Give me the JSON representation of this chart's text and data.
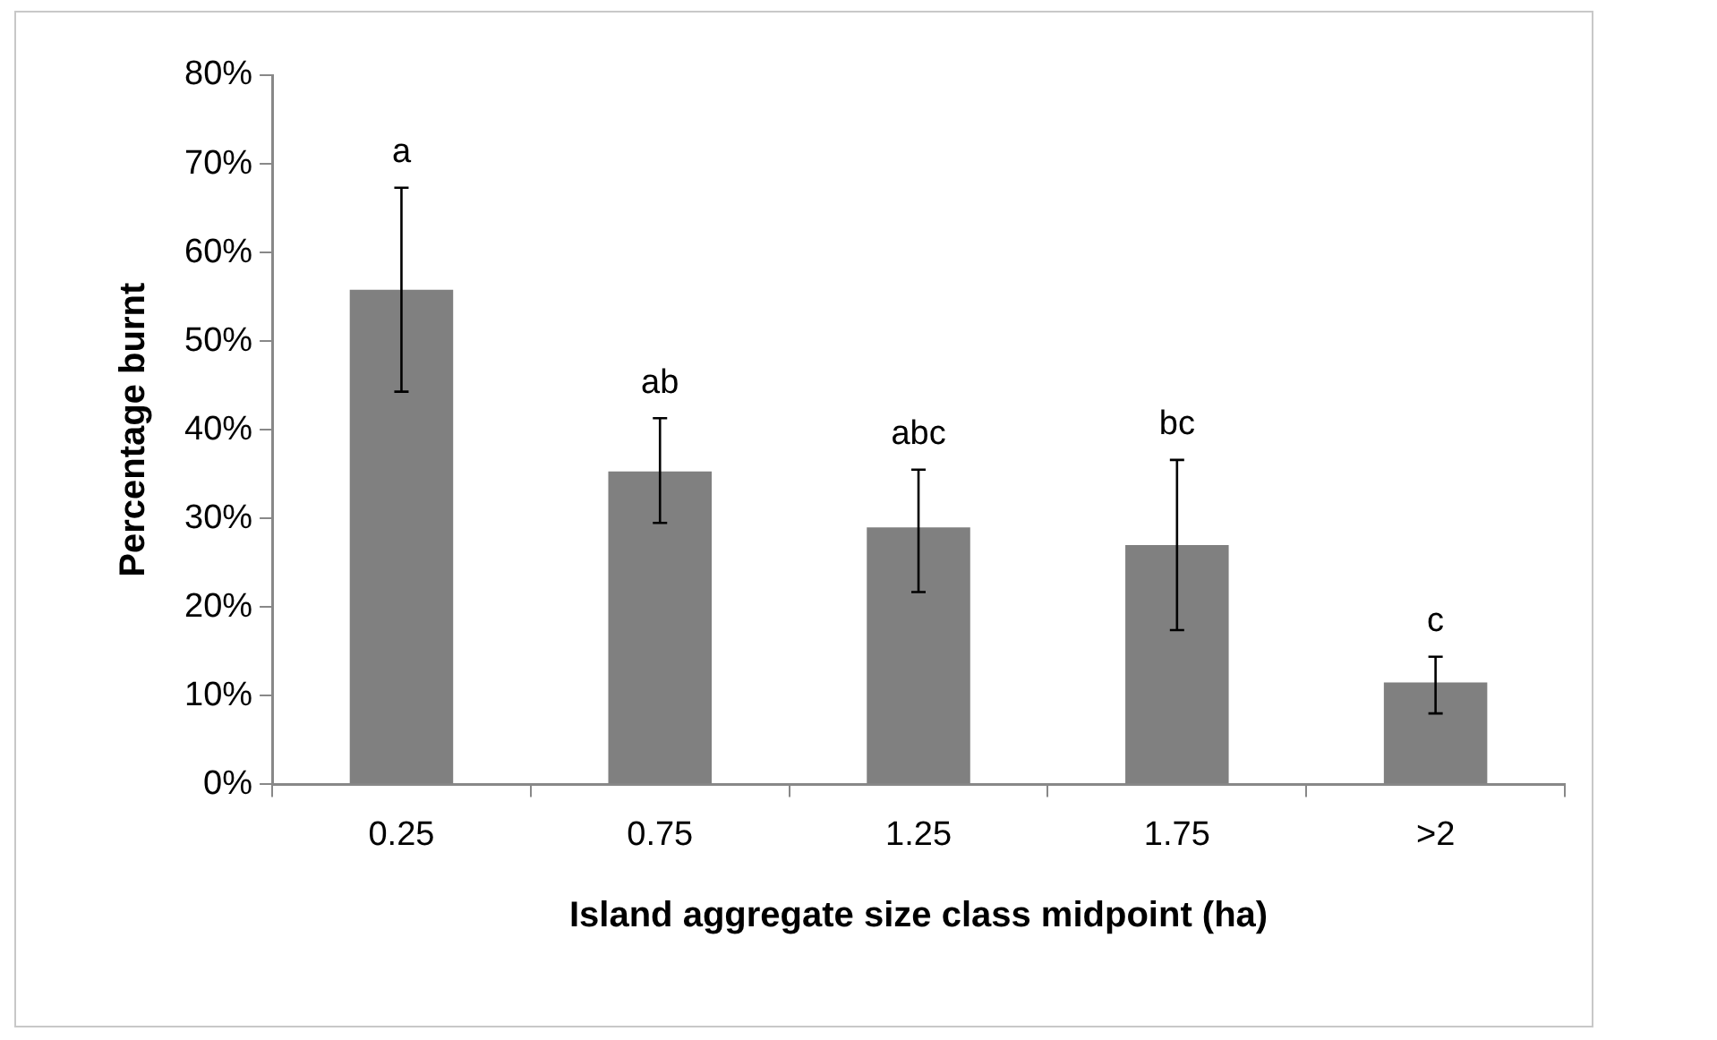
{
  "chart_data": {
    "type": "bar",
    "xlabel": "Island aggregate size class midpoint (ha)",
    "ylabel": "Percentage burnt",
    "categories": [
      "0.25",
      "0.75",
      "1.25",
      "1.75",
      ">2"
    ],
    "series": [
      {
        "color": "#808080",
        "values": [
          55.8,
          35.3,
          29.0,
          27.0,
          11.5
        ],
        "errors": [
          [
            44.3,
            67.3
          ],
          [
            29.5,
            41.3
          ],
          [
            21.7,
            35.5
          ],
          [
            17.4,
            36.6
          ],
          [
            8.0,
            14.4
          ]
        ]
      }
    ],
    "ylim": [
      0,
      80
    ],
    "yticks": [
      {
        "value": 0,
        "label": "0%"
      },
      {
        "value": 10,
        "label": "10%"
      },
      {
        "value": 20,
        "label": "20%"
      },
      {
        "value": 30,
        "label": "30%"
      },
      {
        "value": 40,
        "label": "40%"
      },
      {
        "value": 50,
        "label": "50%"
      },
      {
        "value": 60,
        "label": "60%"
      },
      {
        "value": 70,
        "label": "70%"
      },
      {
        "value": 80,
        "label": "80%"
      }
    ],
    "annotations": [
      {
        "text": "a",
        "x": "0.25",
        "y": 67.3
      },
      {
        "text": "ab",
        "x": "0.75",
        "y": 41.3
      },
      {
        "text": "abc",
        "x": "1.25",
        "y": 35.5
      },
      {
        "text": "bc",
        "x": "1.75",
        "y": 36.6
      },
      {
        "text": "c",
        "x": ">2",
        "y": 14.4
      }
    ],
    "grid": false,
    "legend": false
  }
}
